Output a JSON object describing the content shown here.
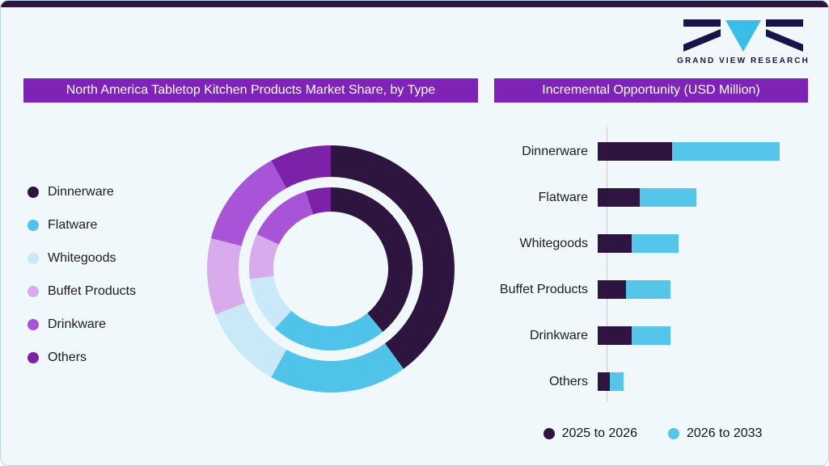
{
  "logo": {
    "text": "GRAND VIEW RESEARCH"
  },
  "colors": {
    "stripe": "#2d1540",
    "header": "#7e22b8",
    "logo_navy": "#1a1347",
    "logo_cyan": "#3bbde9",
    "card_background": "#f1f8fc",
    "axis_line": "#c9c9c9"
  },
  "chart_data": [
    {
      "type": "pie",
      "subtype": "donut-double-ring",
      "title": "North America Tabletop Kitchen Products Market Share, by Type",
      "categories": [
        "Dinnerware",
        "Flatware",
        "Whitegoods",
        "Buffet Products",
        "Drinkware",
        "Others"
      ],
      "colors": [
        "#2d1540",
        "#4fc3ea",
        "#c9e9f8",
        "#d8abec",
        "#a854d8",
        "#7b22a8"
      ],
      "series": [
        {
          "name": "outer ring",
          "values": [
            40,
            18,
            11,
            10,
            13,
            8
          ]
        },
        {
          "name": "inner ring",
          "values": [
            39,
            23,
            11,
            9,
            13,
            5
          ]
        }
      ],
      "units": "percent (estimated, data labels not shown)",
      "legend_position": "left",
      "start_angle_deg": 0,
      "direction": "clockwise"
    },
    {
      "type": "bar",
      "orientation": "horizontal",
      "stacked": true,
      "title": "Incremental Opportunity (USD Million)",
      "categories": [
        "Dinnerware",
        "Flatware",
        "Whitegoods",
        "Buffet Products",
        "Drinkware",
        "Others"
      ],
      "series": [
        {
          "name": "2025 to 2026",
          "color": "#2d1540",
          "values": [
            92,
            52,
            42,
            35,
            42,
            15
          ]
        },
        {
          "name": "2026 to 2033",
          "color": "#56c5ea",
          "values": [
            133,
            70,
            58,
            55,
            48,
            17
          ]
        }
      ],
      "units": "relative length (value axis not labeled)",
      "legend_position": "bottom",
      "grid": false
    }
  ]
}
